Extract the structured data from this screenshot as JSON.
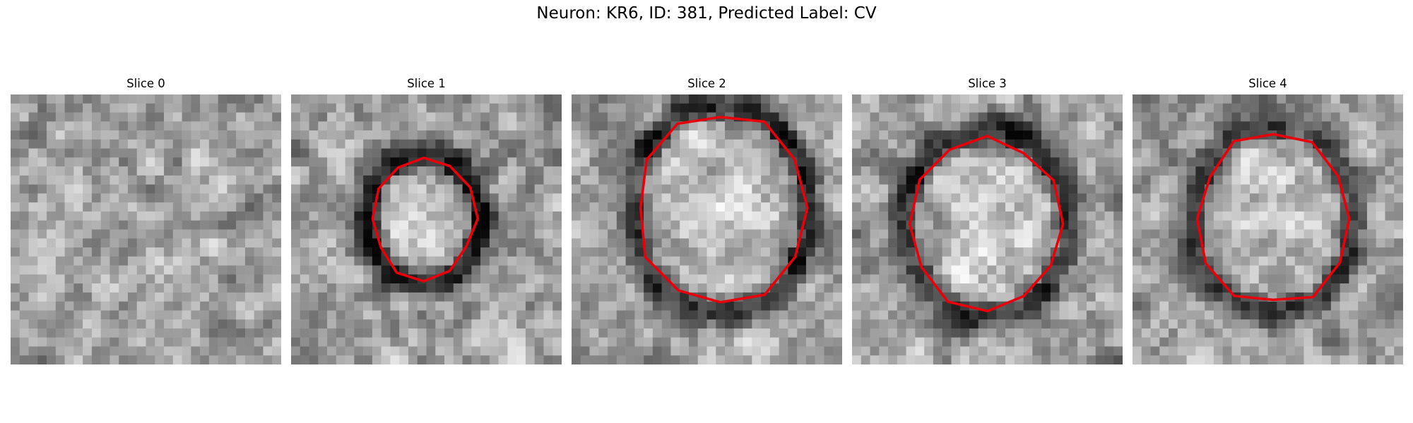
{
  "figure": {
    "title": "Neuron: KR6, ID: 381, Predicted Label: CV"
  },
  "panels": [
    {
      "title": "Slice 0",
      "has_contour": false,
      "seed": 11,
      "center": [
        0.45,
        0.45
      ],
      "radius": 0.18,
      "ring_strength": 0.0
    },
    {
      "title": "Slice 1",
      "has_contour": true,
      "seed": 23,
      "center": [
        0.49,
        0.46
      ],
      "radius": 0.17,
      "ring_strength": 0.9
    },
    {
      "title": "Slice 2",
      "has_contour": true,
      "seed": 37,
      "center": [
        0.55,
        0.42
      ],
      "radius": 0.29,
      "ring_strength": 0.85
    },
    {
      "title": "Slice 3",
      "has_contour": true,
      "seed": 41,
      "center": [
        0.5,
        0.48
      ],
      "radius": 0.26,
      "ring_strength": 0.8
    },
    {
      "title": "Slice 4",
      "has_contour": true,
      "seed": 53,
      "center": [
        0.52,
        0.46
      ],
      "radius": 0.26,
      "ring_strength": 0.7
    }
  ],
  "colors": {
    "contour": "#e8000b",
    "background": "#ffffff"
  }
}
